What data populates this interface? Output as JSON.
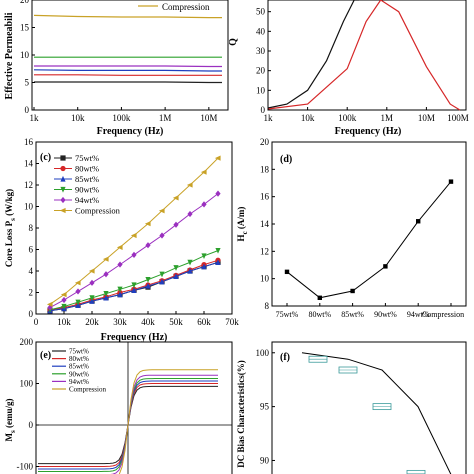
{
  "panels": {
    "a": {
      "ylabel": "Effective Permeabili",
      "xlabel": "Frequency (Hz)",
      "legend_visible": "Compression",
      "yticks": [
        "0",
        "5",
        "10",
        "15",
        "20"
      ],
      "xticks": [
        "1k",
        "10k",
        "100k",
        "1M",
        "10M"
      ]
    },
    "b": {
      "ylabel": "Q",
      "xlabel": "Frequency (Hz)",
      "yticks": [
        "0",
        "10",
        "20",
        "30",
        "40",
        "50",
        "60"
      ],
      "xticks": [
        "1k",
        "10k",
        "100k",
        "1M",
        "10M",
        "100M"
      ]
    },
    "c": {
      "tag": "(c)",
      "ylabel_main": "Core Loss P",
      "ylabel_sub": "s",
      "ylabel_unit": " (W/kg)",
      "xlabel": "Frequency (Hz)",
      "yticks": [
        "0",
        "2",
        "4",
        "6",
        "8",
        "10",
        "12",
        "14",
        "16"
      ],
      "xticks": [
        "0",
        "10k",
        "20k",
        "30k",
        "40k",
        "50k",
        "60k",
        "70k"
      ]
    },
    "d": {
      "tag": "(d)",
      "ylabel_main": "H",
      "ylabel_sub": "c",
      "ylabel_unit": " (A/m)",
      "yticks": [
        "8",
        "10",
        "12",
        "14",
        "16",
        "18",
        "20"
      ],
      "xticks": [
        "75wt%",
        "80wt%",
        "85wt%",
        "90wt%",
        "94wt%",
        "Compression"
      ]
    },
    "e": {
      "tag": "(e)",
      "ylabel_main": "M",
      "ylabel_sub": "s",
      "ylabel_unit": " (emu/g)",
      "yticks": [
        "200",
        "100",
        "0",
        "-100"
      ]
    },
    "f": {
      "tag": "(f)",
      "ylabel": "DC Bias Characteristics(%)",
      "yticks": [
        "100",
        "95",
        "90"
      ]
    }
  },
  "legend": [
    "75wt%",
    "80wt%",
    "85wt%",
    "90wt%",
    "94wt%",
    "Compression"
  ],
  "series_colors": [
    "#222222",
    "#d62728",
    "#1f3fbf",
    "#2ca02c",
    "#9b30c0",
    "#c9a227"
  ],
  "chart_data": [
    {
      "panel": "a",
      "type": "line",
      "xscale": "log",
      "xlim": [
        1000,
        20000000
      ],
      "ylim": [
        0,
        20
      ],
      "x": [
        1000,
        10000,
        100000,
        1000000,
        10000000,
        20000000
      ],
      "series": [
        {
          "name": "Compression",
          "values": [
            17.2,
            17.0,
            16.9,
            16.9,
            16.8,
            16.8
          ]
        },
        {
          "values": [
            9.6,
            9.6,
            9.6,
            9.6,
            9.6,
            9.6
          ]
        },
        {
          "values": [
            8.0,
            8.0,
            8.0,
            8.0,
            7.9,
            7.9
          ]
        },
        {
          "values": [
            7.3,
            7.2,
            7.2,
            7.2,
            7.1,
            7.1
          ]
        },
        {
          "values": [
            6.4,
            6.4,
            6.3,
            6.3,
            6.3,
            6.3
          ]
        },
        {
          "values": [
            5.1,
            5.1,
            5.1,
            5.1,
            5.0,
            5.0
          ]
        }
      ]
    },
    {
      "panel": "b",
      "type": "line",
      "xscale": "log",
      "xlim": [
        1000,
        100000000
      ],
      "ylim": [
        0,
        60
      ],
      "series": [
        {
          "x": [
            1000,
            3000,
            10000,
            30000,
            80000,
            150000,
            200000
          ],
          "values": [
            1,
            3,
            10,
            25,
            45,
            60,
            70
          ]
        },
        {
          "x": [
            1000,
            10000,
            100000,
            300000,
            700000,
            2000000,
            10000000,
            40000000,
            70000000
          ],
          "values": [
            0.5,
            3,
            21,
            45,
            56,
            50,
            22,
            3,
            0
          ]
        }
      ]
    },
    {
      "panel": "c",
      "type": "line",
      "xlim": [
        0,
        70000
      ],
      "ylim": [
        0,
        16
      ],
      "x": [
        5000,
        10000,
        15000,
        20000,
        25000,
        30000,
        35000,
        40000,
        45000,
        50000,
        55000,
        60000,
        65000
      ],
      "series": [
        {
          "name": "75wt%",
          "values": [
            0.3,
            0.5,
            0.8,
            1.2,
            1.5,
            1.8,
            2.2,
            2.5,
            3.0,
            3.5,
            4.0,
            4.4,
            4.8
          ]
        },
        {
          "name": "80wt%",
          "values": [
            0.4,
            0.6,
            0.9,
            1.3,
            1.6,
            2.0,
            2.3,
            2.7,
            3.1,
            3.6,
            4.1,
            4.6,
            5.0
          ]
        },
        {
          "name": "85wt%",
          "values": [
            0.3,
            0.5,
            0.8,
            1.2,
            1.5,
            1.8,
            2.2,
            2.6,
            3.0,
            3.5,
            4.0,
            4.4,
            4.8
          ]
        },
        {
          "name": "90wt%",
          "values": [
            0.4,
            0.7,
            1.1,
            1.5,
            1.9,
            2.3,
            2.7,
            3.2,
            3.7,
            4.3,
            4.8,
            5.4,
            5.9
          ]
        },
        {
          "name": "94wt%",
          "values": [
            0.6,
            1.3,
            2.1,
            2.9,
            3.7,
            4.6,
            5.5,
            6.4,
            7.3,
            8.3,
            9.3,
            10.2,
            11.2
          ]
        },
        {
          "name": "Compression",
          "values": [
            0.9,
            1.8,
            2.9,
            4.0,
            5.1,
            6.2,
            7.3,
            8.4,
            9.6,
            10.8,
            12.0,
            13.2,
            14.5
          ]
        }
      ]
    },
    {
      "panel": "d",
      "type": "line",
      "ylim": [
        8,
        20
      ],
      "categories": [
        "75wt%",
        "80wt%",
        "85wt%",
        "90wt%",
        "94wt%",
        "Compression"
      ],
      "values": [
        10.5,
        8.6,
        9.1,
        10.9,
        14.2,
        17.1
      ]
    },
    {
      "panel": "e",
      "type": "line",
      "ylim": [
        -130,
        200
      ],
      "series": [
        {
          "name": "75wt%",
          "sat": 93
        },
        {
          "name": "80wt%",
          "sat": 100
        },
        {
          "name": "85wt%",
          "sat": 106
        },
        {
          "name": "90wt%",
          "sat": 112
        },
        {
          "name": "94wt%",
          "sat": 120
        },
        {
          "name": "Compression",
          "sat": 133
        }
      ]
    },
    {
      "panel": "f",
      "type": "line",
      "ylim": [
        88,
        101
      ],
      "values": [
        100,
        99.4,
        98.4,
        95.0,
        88.5
      ],
      "boxes": [
        99.4,
        98.4,
        95.0,
        88.8
      ]
    }
  ]
}
